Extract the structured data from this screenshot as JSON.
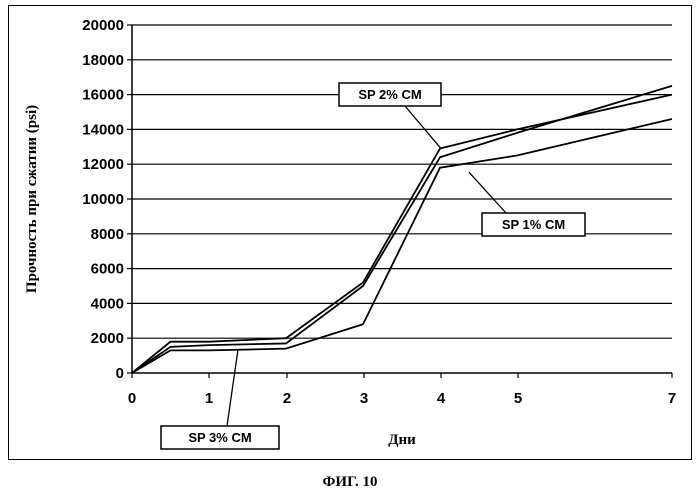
{
  "chart_data": {
    "type": "line",
    "xlabel": "Дни",
    "ylabel": "Прочность при сжатии (psi)",
    "x_ticks": [
      "0",
      "1",
      "2",
      "3",
      "4",
      "5",
      "7"
    ],
    "x": [
      0,
      0.5,
      1,
      2,
      3,
      4,
      5,
      7
    ],
    "ylim": [
      0,
      20000
    ],
    "y_ticks": [
      0,
      2000,
      4000,
      6000,
      8000,
      10000,
      12000,
      14000,
      16000,
      18000,
      20000
    ],
    "grid": "horizontal",
    "series": [
      {
        "name": "SP 1% CM",
        "values": [
          0,
          1300,
          1300,
          1400,
          2800,
          11800,
          12500,
          14600
        ]
      },
      {
        "name": "SP 2% CM",
        "values": [
          0,
          1800,
          1800,
          2000,
          5200,
          12900,
          14000,
          16000
        ]
      },
      {
        "name": "SP 3% CM",
        "values": [
          0,
          1500,
          1600,
          1700,
          5000,
          12400,
          13800,
          16500
        ]
      }
    ],
    "annotations": [
      "SP 2% CM",
      "SP 1% CM",
      "SP 3% CM"
    ]
  },
  "caption": "ФИГ. 10"
}
